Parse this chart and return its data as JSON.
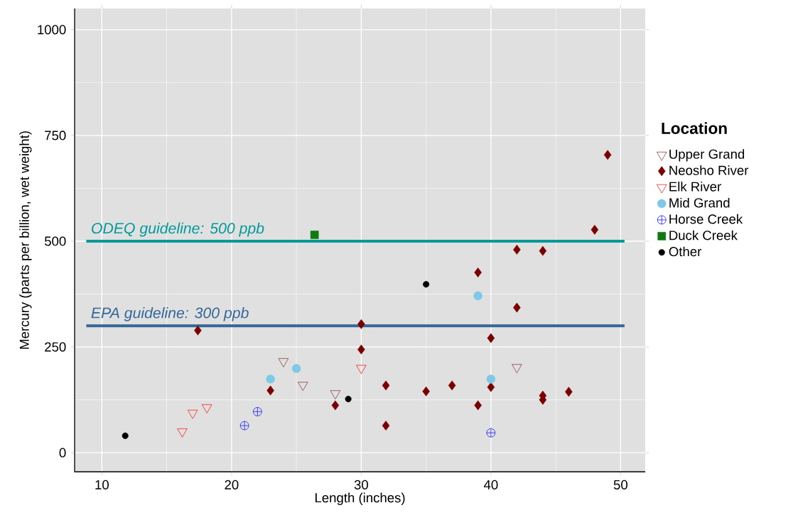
{
  "chart_data": {
    "type": "scatter",
    "xlabel": "Length (inches)",
    "ylabel": "Mercury (parts per billion, wet weight)",
    "legend_title": "Location",
    "legend": "right",
    "grid": true,
    "xlim": [
      7.9,
      51.9
    ],
    "ylim": [
      -45,
      1050
    ],
    "xticks": [
      10,
      20,
      30,
      40,
      50
    ],
    "yticks": [
      0,
      250,
      500,
      750,
      1000
    ],
    "series": [
      {
        "name": "Upper Grand",
        "color": "#8b4040",
        "marker": "triangle",
        "x": [
          24,
          25.5,
          28,
          42
        ],
        "values": [
          216,
          160,
          140,
          202
        ]
      },
      {
        "name": "Neosho River",
        "color": "#7a0000",
        "marker": "diamond",
        "x": [
          17.4,
          23,
          28,
          30,
          30,
          31.9,
          31.9,
          35,
          37,
          39,
          39,
          40,
          40,
          42,
          42,
          44,
          44,
          44,
          46,
          48,
          49
        ],
        "values": [
          289,
          147,
          112,
          304,
          244,
          159,
          64,
          145,
          159,
          426,
          112,
          271,
          155,
          480,
          343,
          477,
          135,
          125,
          144,
          527,
          704
        ]
      },
      {
        "name": "Elk River",
        "color": "#ff2020",
        "marker": "triangle",
        "x": [
          16.2,
          17,
          18.1,
          30
        ],
        "values": [
          50,
          94,
          107,
          200
        ]
      },
      {
        "name": "Mid Grand",
        "color": "#7ec8e8",
        "marker": "circle",
        "x": [
          23,
          25,
          39,
          40
        ],
        "values": [
          174,
          199,
          371,
          174
        ]
      },
      {
        "name": "Horse Creek",
        "color": "#1a1aff",
        "marker": "cross",
        "x": [
          21,
          22,
          40
        ],
        "values": [
          64,
          97,
          47
        ]
      },
      {
        "name": "Duck Creek",
        "color": "#107a10",
        "marker": "square",
        "x": [
          26.4
        ],
        "values": [
          515
        ]
      },
      {
        "name": "Other",
        "color": "#000000",
        "marker": "circle",
        "x": [
          11.8,
          29,
          35
        ],
        "values": [
          40,
          127,
          398
        ]
      }
    ],
    "ref_lines": [
      {
        "axis": "y",
        "value": 500,
        "label": "ODEQ guideline: 500 ppb",
        "color": "#009999"
      },
      {
        "axis": "y",
        "value": 300,
        "label": "EPA guideline: 300 ppb",
        "color": "#336699"
      }
    ]
  }
}
